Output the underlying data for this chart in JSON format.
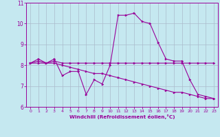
{
  "xlabel": "Windchill (Refroidissement éolien,°C)",
  "bg_color": "#c5e8f0",
  "line_color": "#990099",
  "grid_color": "#aabbcc",
  "xlim": [
    -0.5,
    23.5
  ],
  "ylim": [
    6,
    11
  ],
  "xticks": [
    0,
    1,
    2,
    3,
    4,
    5,
    6,
    7,
    8,
    9,
    10,
    11,
    12,
    13,
    14,
    15,
    16,
    17,
    18,
    19,
    20,
    21,
    22,
    23
  ],
  "yticks": [
    6,
    7,
    8,
    9,
    10,
    11
  ],
  "series": [
    [
      8.1,
      8.3,
      8.1,
      8.3,
      7.5,
      7.7,
      7.7,
      6.6,
      7.3,
      7.1,
      8.0,
      10.4,
      10.4,
      10.5,
      10.1,
      10.0,
      9.1,
      8.3,
      8.2,
      8.2,
      7.3,
      6.6,
      6.5,
      6.4
    ],
    [
      8.1,
      8.1,
      8.1,
      8.1,
      8.0,
      7.9,
      7.8,
      7.7,
      7.6,
      7.6,
      7.5,
      7.4,
      7.3,
      7.2,
      7.1,
      7.0,
      6.9,
      6.8,
      6.7,
      6.7,
      6.6,
      6.5,
      6.4,
      6.4
    ],
    [
      8.1,
      8.2,
      8.1,
      8.2,
      8.1,
      8.1,
      8.1,
      8.1,
      8.1,
      8.1,
      8.1,
      8.1,
      8.1,
      8.1,
      8.1,
      8.1,
      8.1,
      8.1,
      8.1,
      8.1,
      8.1,
      8.1,
      8.1,
      8.1
    ]
  ]
}
